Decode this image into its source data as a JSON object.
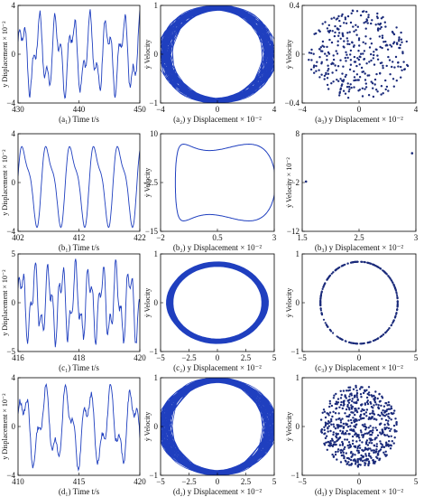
{
  "figure": {
    "panels": [
      {
        "id": "a1",
        "caption": "(a₁) Time t/s",
        "ylabel": "y Displacement × 10⁻²",
        "xticks": [
          "430",
          "440",
          "450"
        ],
        "yticks": [
          "4",
          "0",
          "−4"
        ]
      },
      {
        "id": "a2",
        "caption": "(a₂) y Displacement × 10⁻²",
        "ylabel": "ẏ Velocity",
        "xticks": [
          "−4",
          "0",
          "4"
        ],
        "yticks": [
          "1",
          "0",
          "−1"
        ]
      },
      {
        "id": "a3",
        "caption": "(a₃) y Displacement × 10⁻²",
        "ylabel": "ẏ Velocity",
        "xticks": [
          "−4",
          "0",
          "4"
        ],
        "yticks": [
          "0.4",
          "0",
          "−0.4"
        ]
      },
      {
        "id": "b1",
        "caption": "(b₁) Time t/s",
        "ylabel": "y Displacement × 10⁻²",
        "xticks": [
          "402",
          "412",
          "422"
        ],
        "yticks": [
          "4",
          "0",
          "−4"
        ]
      },
      {
        "id": "b2",
        "caption": "(b₂) y Displacement × 10⁻²",
        "ylabel": "ẏ Velocity",
        "xticks": [
          "−2",
          "0.5",
          "3"
        ],
        "yticks": [
          "10",
          "−2.5",
          "−15"
        ]
      },
      {
        "id": "b3",
        "caption": "(b₃) y Displacement × 10⁻²",
        "ylabel": "ẏ Velocity × 10⁻²",
        "xticks": [
          "1.5",
          "2.5",
          "3"
        ],
        "yticks": [
          "8",
          "−2",
          "−12"
        ]
      },
      {
        "id": "c1",
        "caption": "(c₁) Time t/s",
        "ylabel": "y Displacement × 10⁻²",
        "xticks": [
          "416",
          "418",
          "420"
        ],
        "yticks": [
          "5",
          "0",
          "−5"
        ]
      },
      {
        "id": "c2",
        "caption": "(c₂) y Displacement × 10⁻²",
        "ylabel": "ẏ Velocity",
        "xticks": [
          "−5",
          "−2.5",
          "0",
          "2.5",
          "5"
        ],
        "yticks": [
          "1",
          "0",
          "−1"
        ]
      },
      {
        "id": "c3",
        "caption": "(c₃) y Displacement × 10⁻²",
        "ylabel": "ẏ Velocity",
        "xticks": [
          "−5",
          "0",
          "5"
        ],
        "yticks": [
          "1",
          "0",
          "−1"
        ]
      },
      {
        "id": "d1",
        "caption": "(d₁) Time t/s",
        "ylabel": "y Displacement × 10⁻²",
        "xticks": [
          "410",
          "415",
          "420"
        ],
        "yticks": [
          "4",
          "0",
          "−4"
        ]
      },
      {
        "id": "d2",
        "caption": "(d₂) y Displacement × 10⁻²",
        "ylabel": "ẏ Velocity",
        "xticks": [
          "−5",
          "−2.5",
          "0",
          "2.5",
          "5"
        ],
        "yticks": [
          "1",
          "0",
          "−1"
        ]
      },
      {
        "id": "d3",
        "caption": "(d₃) y Displacement × 10⁻²",
        "ylabel": "ẏ Velocity",
        "xticks": [
          "−5",
          "0",
          "5"
        ],
        "yticks": [
          "1",
          "0",
          "−1"
        ]
      }
    ]
  },
  "colors": {
    "series": "#1f3fbf",
    "points": "#1a2a7a",
    "highlight": "#e8ffff"
  },
  "chart_data": [
    {
      "type": "line",
      "id": "a1",
      "xlabel": "Time t/s",
      "ylabel": "y Displacement × 10⁻²",
      "xlim": [
        430,
        450
      ],
      "ylim": [
        -4,
        4
      ],
      "description_signal": "quasi-periodic oscillation"
    },
    {
      "type": "line",
      "id": "a2",
      "xlabel": "y Displacement × 10⁻²",
      "ylabel": "ẏ Velocity",
      "xlim": [
        -4,
        4
      ],
      "ylim": [
        -1,
        1
      ]
    },
    {
      "type": "scatter",
      "id": "a3",
      "xlabel": "y Displacement × 10⁻²",
      "ylabel": "ẏ Velocity",
      "xlim": [
        -4,
        4
      ],
      "ylim": [
        -0.4,
        0.4
      ]
    },
    {
      "type": "line",
      "id": "b1",
      "xlabel": "Time t/s",
      "ylabel": "y Displacement × 10⁻²",
      "xlim": [
        402,
        422
      ],
      "ylim": [
        -4,
        4
      ]
    },
    {
      "type": "line",
      "id": "b2",
      "xlabel": "y Displacement × 10⁻²",
      "ylabel": "ẏ Velocity",
      "xlim": [
        -2,
        3
      ],
      "ylim": [
        -15,
        10
      ]
    },
    {
      "type": "scatter",
      "id": "b3",
      "xlabel": "y Displacement × 10⁻²",
      "ylabel": "ẏ Velocity × 10⁻²",
      "xlim": [
        1.5,
        3
      ],
      "ylim": [
        -12,
        8
      ],
      "points": [
        {
          "x": 1.55,
          "y": -1.8
        },
        {
          "x": 2.95,
          "y": 4.0
        }
      ]
    },
    {
      "type": "line",
      "id": "c1",
      "xlabel": "Time t/s",
      "ylabel": "y Displacement × 10⁻²",
      "xlim": [
        416,
        420
      ],
      "ylim": [
        -5,
        5
      ]
    },
    {
      "type": "line",
      "id": "c2",
      "xlabel": "y Displacement × 10⁻²",
      "ylabel": "ẏ Velocity",
      "xlim": [
        -5,
        5
      ],
      "ylim": [
        -1,
        1
      ]
    },
    {
      "type": "scatter",
      "id": "c3",
      "xlabel": "y Displacement × 10⁻²",
      "ylabel": "ẏ Velocity",
      "xlim": [
        -5,
        5
      ],
      "ylim": [
        -1,
        1
      ]
    },
    {
      "type": "line",
      "id": "d1",
      "xlabel": "Time t/s",
      "ylabel": "y Displacement × 10⁻²",
      "xlim": [
        410,
        420
      ],
      "ylim": [
        -4,
        4
      ]
    },
    {
      "type": "line",
      "id": "d2",
      "xlabel": "y Displacement × 10⁻²",
      "ylabel": "ẏ Velocity",
      "xlim": [
        -5,
        5
      ],
      "ylim": [
        -1,
        1
      ]
    },
    {
      "type": "scatter",
      "id": "d3",
      "xlabel": "y Displacement × 10⁻²",
      "ylabel": "ẏ Velocity",
      "xlim": [
        -5,
        5
      ],
      "ylim": [
        -1,
        1
      ]
    }
  ]
}
